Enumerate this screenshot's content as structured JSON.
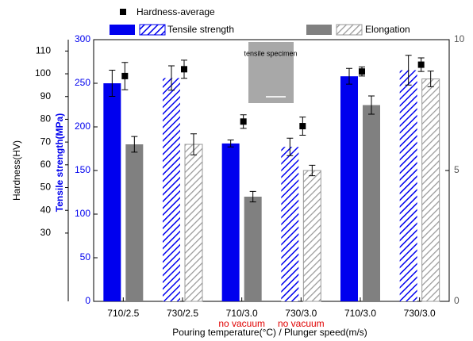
{
  "chart_data": {
    "type": "bar",
    "categories": [
      "710/2.5",
      "730/2.5",
      "710/3.0",
      "730/3.0",
      "710/3.0",
      "730/3.0"
    ],
    "category_notes": [
      null,
      null,
      "no vacuum",
      "no vacuum",
      null,
      null
    ],
    "hatched": [
      false,
      true,
      false,
      true,
      false,
      true
    ],
    "xlabel": "Pouring temperature(°C) / Plunger speed(m/s)",
    "ylabel": "Tensile strength(MPa)",
    "ylim": [
      0,
      300
    ],
    "yticks": [
      0,
      50,
      100,
      150,
      200,
      250,
      300
    ],
    "hardness_axis": {
      "label": "Hardness(HV)",
      "lim": [
        0,
        115
      ],
      "ticks": [
        30,
        40,
        50,
        60,
        70,
        80,
        90,
        100,
        110
      ]
    },
    "y2lim": [
      0,
      10
    ],
    "y2ticks": [
      0,
      5,
      10
    ],
    "annotation": "tensile specimen",
    "series": [
      {
        "name": "Tensile strength",
        "color": "#0000ee",
        "values": [
          250,
          256,
          181,
          177,
          258,
          265
        ],
        "errors": [
          15,
          14,
          4,
          10,
          9,
          17
        ]
      },
      {
        "name": "Elongation",
        "color": "#808080",
        "axis": "y2",
        "values": [
          6.0,
          6.0,
          4.0,
          5.0,
          7.5,
          8.5
        ],
        "errors": [
          0.3,
          0.4,
          0.2,
          0.2,
          0.35,
          0.3
        ]
      },
      {
        "name": "Hardness-average",
        "color": "#000000",
        "axis": "hardness",
        "values": [
          99,
          102,
          79,
          77,
          101,
          104
        ],
        "errors": [
          6,
          4,
          3,
          4,
          2,
          3
        ]
      }
    ]
  }
}
